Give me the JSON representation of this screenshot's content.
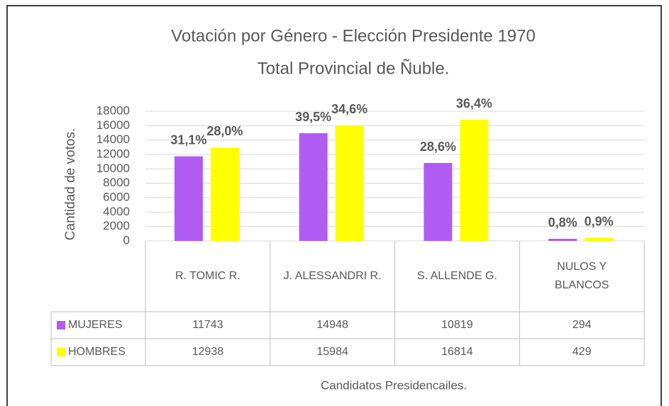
{
  "chart_data": {
    "type": "bar",
    "title": "Votación por Género - Elección Presidente 1970",
    "subtitle": "Total Provincial de Ñuble.",
    "y_label": "Cantidad de votos.",
    "x_label": "Candidatos Presidencailes.",
    "categories": [
      "R. TOMIC R.",
      "J. ALESSANDRI R.",
      "S. ALLENDE G.",
      "NULOS Y BLANCOS"
    ],
    "series": [
      {
        "name": "MUJERES",
        "color": "#b05cf2",
        "values": [
          11743,
          14948,
          10819,
          294
        ],
        "share_labels": [
          "31,1%",
          "39,5%",
          "28,6%",
          "0,8%"
        ]
      },
      {
        "name": "HOMBRES",
        "color": "#ffff00",
        "values": [
          12938,
          15984,
          16814,
          429
        ],
        "share_labels": [
          "28,0%",
          "34,6%",
          "36,4%",
          "0,9%"
        ]
      }
    ],
    "ylim": [
      0,
      18000
    ],
    "yticks": [
      0,
      2000,
      4000,
      6000,
      8000,
      10000,
      12000,
      14000,
      16000,
      18000
    ],
    "grid": true
  }
}
